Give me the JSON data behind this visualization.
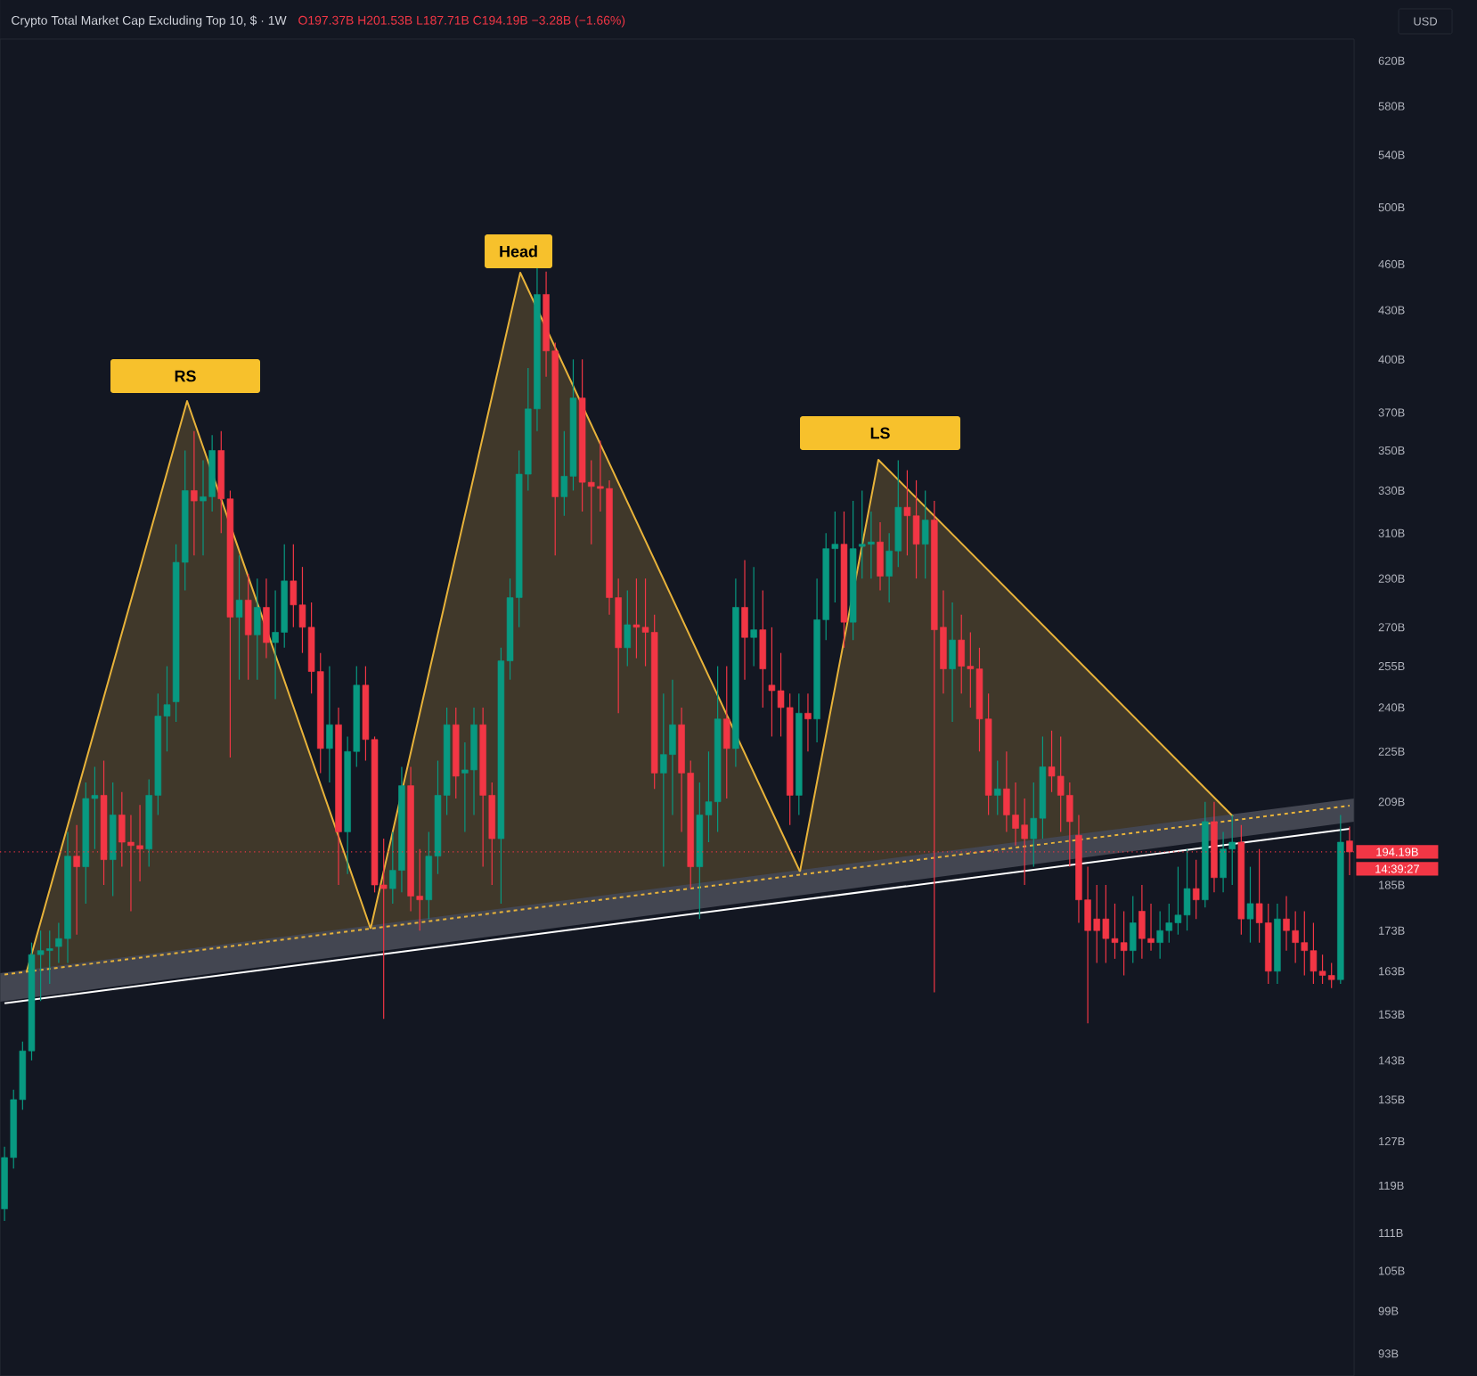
{
  "chart_data": {
    "type": "candlestick",
    "title": "Crypto Total Market Cap Excluding Top 10, $ · 1W",
    "annotations": [
      "RS",
      "Head",
      "LS",
      "O197.37B H201.53B L187.71B C194.19B −3.28B (−1.66%)",
      "USD",
      "14:39:27"
    ],
    "categories": [
      null,
      null,
      null,
      null,
      null,
      null,
      null,
      null,
      null,
      null,
      null,
      null,
      null,
      null,
      null,
      null,
      null,
      null,
      null,
      null,
      null,
      null,
      null,
      null,
      null,
      null,
      null,
      null,
      null,
      null,
      null,
      null,
      null,
      null,
      null,
      null,
      null,
      null,
      null,
      null,
      null,
      null,
      null,
      null,
      null,
      null,
      null,
      null,
      null,
      null,
      null,
      null,
      null,
      null,
      null,
      null,
      null,
      null,
      null,
      null,
      null,
      null,
      null,
      null,
      null,
      null,
      null,
      null,
      null,
      null,
      null,
      null,
      null,
      null,
      null,
      null,
      null,
      null,
      null,
      null,
      null,
      null,
      null,
      null,
      null,
      null,
      null,
      null,
      null,
      null,
      null,
      null,
      null,
      null,
      null,
      null,
      null,
      null,
      null,
      null,
      null,
      null,
      null,
      null,
      null,
      null,
      null,
      null,
      null,
      null,
      null,
      null,
      null,
      null,
      null,
      null,
      null,
      null,
      null,
      null,
      null,
      null,
      null,
      null,
      null,
      null,
      null,
      null,
      null,
      null,
      null,
      null,
      null,
      null,
      null,
      null,
      null,
      null,
      null,
      null,
      null,
      null,
      null,
      null,
      null,
      null,
      null,
      null,
      null,
      null
    ],
    "ohlc": [
      [
        115,
        126,
        113,
        124
      ],
      [
        124,
        137,
        122,
        135
      ],
      [
        135,
        147,
        133,
        145
      ],
      [
        145,
        170,
        143,
        167
      ],
      [
        167,
        173,
        156,
        168
      ],
      [
        168,
        173,
        160,
        168.5
      ],
      [
        169,
        175,
        165,
        171
      ],
      [
        171,
        200,
        165,
        193
      ],
      [
        193,
        202,
        172,
        190
      ],
      [
        190,
        215,
        180,
        210
      ],
      [
        210,
        220,
        195,
        211
      ],
      [
        211,
        222,
        185,
        192
      ],
      [
        192,
        215,
        182,
        205
      ],
      [
        205,
        212,
        190,
        197
      ],
      [
        197,
        205,
        178,
        196
      ],
      [
        196,
        208,
        186,
        195
      ],
      [
        195,
        216,
        190,
        211
      ],
      [
        211,
        245,
        205,
        237
      ],
      [
        237,
        255,
        225,
        241
      ],
      [
        242,
        305,
        235,
        297
      ],
      [
        297,
        350,
        285,
        330
      ],
      [
        330,
        360,
        300,
        325
      ],
      [
        325,
        345,
        300,
        327
      ],
      [
        327,
        358,
        320,
        350
      ],
      [
        350,
        360,
        310,
        326
      ],
      [
        326,
        330,
        223,
        274
      ],
      [
        274,
        300,
        250,
        281
      ],
      [
        281,
        292,
        250,
        267
      ],
      [
        267,
        290,
        250,
        278
      ],
      [
        278,
        290,
        258,
        264
      ],
      [
        264,
        285,
        243,
        268
      ],
      [
        268,
        305,
        262,
        289
      ],
      [
        289,
        305,
        270,
        279
      ],
      [
        279,
        295,
        260,
        270
      ],
      [
        270,
        280,
        245,
        253
      ],
      [
        253,
        260,
        218,
        226
      ],
      [
        226,
        255,
        215,
        234
      ],
      [
        234,
        240,
        185,
        200
      ],
      [
        200,
        230,
        188,
        225
      ],
      [
        225,
        255,
        220,
        248
      ],
      [
        248,
        255,
        222,
        229
      ],
      [
        229,
        230,
        183,
        185
      ],
      [
        185,
        198,
        152,
        184
      ],
      [
        184,
        200,
        180,
        189
      ],
      [
        189,
        220,
        183,
        214
      ],
      [
        214,
        220,
        178,
        182
      ],
      [
        182,
        195,
        173,
        181
      ],
      [
        181,
        200,
        176,
        193
      ],
      [
        193,
        222,
        188,
        211
      ],
      [
        211,
        240,
        205,
        234
      ],
      [
        234,
        240,
        210,
        217
      ],
      [
        218,
        228,
        200,
        219
      ],
      [
        219,
        240,
        205,
        234
      ],
      [
        234,
        240,
        190,
        211
      ],
      [
        211,
        215,
        185,
        198
      ],
      [
        198,
        262,
        180,
        257
      ],
      [
        257,
        290,
        250,
        282
      ],
      [
        282,
        350,
        270,
        338
      ],
      [
        338,
        395,
        330,
        372
      ],
      [
        372,
        458,
        360,
        440
      ],
      [
        440,
        455,
        390,
        405
      ],
      [
        405,
        410,
        300,
        327
      ],
      [
        327,
        360,
        318,
        337
      ],
      [
        337,
        400,
        330,
        378
      ],
      [
        378,
        400,
        320,
        334
      ],
      [
        334,
        345,
        305,
        332
      ],
      [
        332,
        355,
        320,
        331
      ],
      [
        331,
        335,
        275,
        282
      ],
      [
        282,
        290,
        238,
        262
      ],
      [
        262,
        285,
        255,
        271
      ],
      [
        271,
        290,
        258,
        270
      ],
      [
        270,
        290,
        255,
        268
      ],
      [
        268,
        275,
        213,
        218
      ],
      [
        218,
        245,
        190,
        224
      ],
      [
        224,
        250,
        205,
        234
      ],
      [
        234,
        240,
        200,
        218
      ],
      [
        218,
        222,
        184,
        190
      ],
      [
        190,
        215,
        176,
        205
      ],
      [
        205,
        225,
        197,
        209
      ],
      [
        209,
        255,
        200,
        236
      ],
      [
        236,
        255,
        210,
        226
      ],
      [
        226,
        290,
        220,
        278
      ],
      [
        278,
        298,
        250,
        266
      ],
      [
        266,
        295,
        255,
        269
      ],
      [
        269,
        285,
        240,
        254
      ],
      [
        248,
        270,
        230,
        246
      ],
      [
        246,
        260,
        230,
        240
      ],
      [
        240,
        245,
        202,
        211
      ],
      [
        211,
        245,
        205,
        238
      ],
      [
        238,
        245,
        225,
        236
      ],
      [
        236,
        290,
        228,
        273
      ],
      [
        273,
        310,
        265,
        303
      ],
      [
        303,
        320,
        280,
        305
      ],
      [
        305,
        320,
        262,
        272
      ],
      [
        272,
        325,
        265,
        303
      ],
      [
        304,
        330,
        290,
        305
      ],
      [
        305,
        320,
        290,
        306
      ],
      [
        306,
        315,
        285,
        291
      ],
      [
        291,
        310,
        280,
        302
      ],
      [
        302,
        345,
        295,
        322
      ],
      [
        322,
        340,
        300,
        318
      ],
      [
        318,
        335,
        290,
        305
      ],
      [
        305,
        330,
        290,
        316
      ],
      [
        316,
        325,
        158,
        269
      ],
      [
        270,
        285,
        245,
        254
      ],
      [
        254,
        280,
        235,
        265
      ],
      [
        265,
        275,
        245,
        255
      ],
      [
        255,
        268,
        240,
        254
      ],
      [
        254,
        262,
        225,
        236
      ],
      [
        236,
        245,
        205,
        211
      ],
      [
        211,
        222,
        205,
        213
      ],
      [
        213,
        225,
        200,
        205
      ],
      [
        205,
        215,
        196,
        201
      ],
      [
        202,
        210,
        185,
        198
      ],
      [
        198,
        215,
        190,
        204
      ],
      [
        204,
        230,
        198,
        220
      ],
      [
        220,
        232,
        212,
        217
      ],
      [
        217,
        230,
        200,
        211
      ],
      [
        211,
        215,
        190,
        203
      ],
      [
        199,
        205,
        175,
        181
      ],
      [
        181,
        190,
        151,
        173
      ],
      [
        176,
        185,
        165,
        173
      ],
      [
        176,
        185,
        165,
        171
      ],
      [
        171,
        180,
        166,
        170
      ],
      [
        170,
        178,
        162,
        168
      ],
      [
        168,
        182,
        165,
        175
      ],
      [
        178,
        185,
        166,
        171
      ],
      [
        171,
        180,
        168,
        170
      ],
      [
        170,
        178,
        166,
        173
      ],
      [
        173,
        180,
        170,
        175
      ],
      [
        175,
        190,
        172,
        177
      ],
      [
        177,
        195,
        173,
        184
      ],
      [
        184,
        192,
        176,
        181
      ],
      [
        181,
        209,
        179,
        203
      ],
      [
        203,
        209,
        183,
        187
      ],
      [
        187,
        200,
        183,
        195
      ],
      [
        195,
        205,
        185,
        197
      ],
      [
        197,
        202,
        172,
        176
      ],
      [
        176,
        190,
        170,
        180
      ],
      [
        180,
        195,
        170,
        175
      ],
      [
        175,
        180,
        160,
        163
      ],
      [
        163,
        180,
        160,
        176
      ],
      [
        176,
        182,
        168,
        173
      ],
      [
        173,
        178,
        165,
        170
      ],
      [
        170,
        178,
        162,
        168
      ],
      [
        168,
        175,
        160,
        163
      ],
      [
        163,
        167,
        160,
        162
      ],
      [
        162,
        165,
        159,
        161
      ],
      [
        161,
        205,
        160,
        197
      ],
      [
        197.37,
        201.53,
        187.71,
        194.19
      ]
    ],
    "colors": [
      "#089981",
      "#089981",
      "#089981",
      "#089981",
      "#089981",
      "#089981",
      "#089981",
      "#089981",
      "#f23645",
      "#089981",
      "#089981",
      "#f23645",
      "#089981",
      "#f23645",
      "#f23645",
      "#f23645",
      "#089981",
      "#089981",
      "#089981",
      "#089981",
      "#089981",
      "#f23645",
      "#089981",
      "#089981",
      "#f23645",
      "#f23645",
      "#089981",
      "#f23645",
      "#089981",
      "#f23645",
      "#089981",
      "#089981",
      "#f23645",
      "#f23645",
      "#f23645",
      "#f23645",
      "#089981",
      "#f23645",
      "#089981",
      "#089981",
      "#f23645",
      "#f23645",
      "#f23645",
      "#089981",
      "#089981",
      "#f23645",
      "#f23645",
      "#089981",
      "#089981",
      "#089981",
      "#f23645",
      "#089981",
      "#089981",
      "#f23645",
      "#f23645",
      "#089981",
      "#089981",
      "#089981",
      "#089981",
      "#089981",
      "#f23645",
      "#f23645",
      "#089981",
      "#089981",
      "#f23645",
      "#f23645",
      "#f23645",
      "#f23645",
      "#f23645",
      "#089981",
      "#f23645",
      "#f23645",
      "#f23645",
      "#089981",
      "#089981",
      "#f23645",
      "#f23645",
      "#089981",
      "#089981",
      "#089981",
      "#f23645",
      "#089981",
      "#f23645",
      "#089981",
      "#f23645",
      "#f23645",
      "#f23645",
      "#f23645",
      "#089981",
      "#f23645",
      "#089981",
      "#089981",
      "#089981",
      "#f23645",
      "#089981",
      "#089981",
      "#089981",
      "#f23645",
      "#089981",
      "#089981",
      "#f23645",
      "#f23645",
      "#089981",
      "#f23645",
      "#f23645",
      "#089981",
      "#f23645",
      "#f23645",
      "#f23645",
      "#f23645",
      "#089981",
      "#f23645",
      "#f23645",
      "#f23645",
      "#089981",
      "#089981",
      "#f23645",
      "#f23645",
      "#f23645",
      "#f23645",
      "#f23645",
      "#f23645",
      "#f23645",
      "#f23645",
      "#f23645",
      "#089981",
      "#f23645",
      "#f23645",
      "#089981",
      "#089981",
      "#089981",
      "#089981",
      "#f23645",
      "#089981",
      "#f23645",
      "#089981",
      "#089981",
      "#f23645",
      "#089981",
      "#f23645",
      "#f23645",
      "#089981",
      "#f23645",
      "#f23645",
      "#f23645",
      "#f23645",
      "#f23645",
      "#f23645",
      "#089981",
      "#f23645"
    ],
    "series": [
      {
        "type": "line",
        "values": [
          162.2,
          null,
          null,
          null,
          null,
          null,
          null,
          null,
          null,
          null,
          null,
          null,
          null,
          null,
          null,
          null,
          null,
          null,
          null,
          null,
          null,
          null,
          null,
          null,
          null,
          null,
          null,
          null,
          null,
          null,
          null,
          null,
          null,
          null,
          null,
          null,
          null,
          null,
          null,
          null,
          null,
          null,
          null,
          null,
          null,
          null,
          null,
          null,
          null,
          null,
          null,
          null,
          null,
          null,
          null,
          null,
          null,
          null,
          null,
          null,
          null,
          null,
          null,
          null,
          null,
          null,
          null,
          null,
          null,
          null,
          null,
          null,
          null,
          null,
          null,
          null,
          null,
          null,
          null,
          null,
          null,
          null,
          null,
          null,
          null,
          null,
          null,
          null,
          null,
          null,
          null,
          null,
          null,
          null,
          null,
          null,
          null,
          null,
          null,
          null,
          null,
          null,
          null,
          null,
          null,
          null,
          null,
          null,
          null,
          null,
          null,
          null,
          null,
          null,
          null,
          null,
          null,
          null,
          null,
          null,
          null,
          null,
          null,
          null,
          null,
          null,
          null,
          null,
          null,
          null,
          null,
          null,
          null,
          null,
          null,
          null,
          null,
          null,
          null,
          null,
          null,
          null,
          null,
          null,
          null,
          null,
          null,
          null,
          null,
          207.8
        ],
        "color": "#e8b33a",
        "line_style": "dashed"
      },
      {
        "type": "line",
        "values": [
          155.5,
          null,
          null,
          null,
          null,
          null,
          null,
          null,
          null,
          null,
          null,
          null,
          null,
          null,
          null,
          null,
          null,
          null,
          null,
          null,
          null,
          null,
          null,
          null,
          null,
          null,
          null,
          null,
          null,
          null,
          null,
          null,
          null,
          null,
          null,
          null,
          null,
          null,
          null,
          null,
          null,
          null,
          null,
          null,
          null,
          null,
          null,
          null,
          null,
          null,
          null,
          null,
          null,
          null,
          null,
          null,
          null,
          null,
          null,
          null,
          null,
          null,
          null,
          null,
          null,
          null,
          null,
          null,
          null,
          null,
          null,
          null,
          null,
          null,
          null,
          null,
          null,
          null,
          null,
          null,
          null,
          null,
          null,
          null,
          null,
          null,
          null,
          null,
          null,
          null,
          null,
          null,
          null,
          null,
          null,
          null,
          null,
          null,
          null,
          null,
          null,
          null,
          null,
          null,
          null,
          null,
          null,
          null,
          null,
          null,
          null,
          null,
          null,
          null,
          null,
          null,
          null,
          null,
          null,
          null,
          null,
          null,
          null,
          null,
          null,
          null,
          null,
          null,
          null,
          null,
          null,
          null,
          null,
          null,
          null,
          null,
          null,
          null,
          null,
          null,
          null,
          null,
          null,
          null,
          null,
          null,
          null,
          null,
          null,
          200.9
        ],
        "color": "#ffffff",
        "line_style": "solid"
      }
    ],
    "log": true,
    "ylim": [
      90,
      640
    ],
    "yticks": [
      {
        "value": 93,
        "label": "93B"
      },
      {
        "value": 99,
        "label": "99B"
      },
      {
        "value": 105,
        "label": "105B"
      },
      {
        "value": 111,
        "label": "111B"
      },
      {
        "value": 119,
        "label": "119B"
      },
      {
        "value": 127,
        "label": "127B"
      },
      {
        "value": 135,
        "label": "135B"
      },
      {
        "value": 143,
        "label": "143B"
      },
      {
        "value": 153,
        "label": "153B"
      },
      {
        "value": 163,
        "label": "163B"
      },
      {
        "value": 173,
        "label": "173B"
      },
      {
        "value": 185,
        "label": "185B"
      },
      {
        "value": 209,
        "label": "209B"
      },
      {
        "value": 225,
        "label": "225B"
      },
      {
        "value": 240,
        "label": "240B"
      },
      {
        "value": 255,
        "label": "255B"
      },
      {
        "value": 270,
        "label": "270B"
      },
      {
        "value": 290,
        "label": "290B"
      },
      {
        "value": 310,
        "label": "310B"
      },
      {
        "value": 330,
        "label": "330B"
      },
      {
        "value": 350,
        "label": "350B"
      },
      {
        "value": 370,
        "label": "370B"
      },
      {
        "value": 400,
        "label": "400B"
      },
      {
        "value": 430,
        "label": "430B"
      },
      {
        "value": 460,
        "label": "460B"
      },
      {
        "value": 500,
        "label": "500B"
      },
      {
        "value": 540,
        "label": "540B"
      },
      {
        "value": 580,
        "label": "580B"
      },
      {
        "value": 620,
        "label": "620B"
      }
    ],
    "tick_labels": "y",
    "ref_lines": [
      {
        "axis": "y",
        "value": 194.19,
        "label": "194.19B",
        "color": "#f23645",
        "line_style": "dotted"
      }
    ]
  }
}
